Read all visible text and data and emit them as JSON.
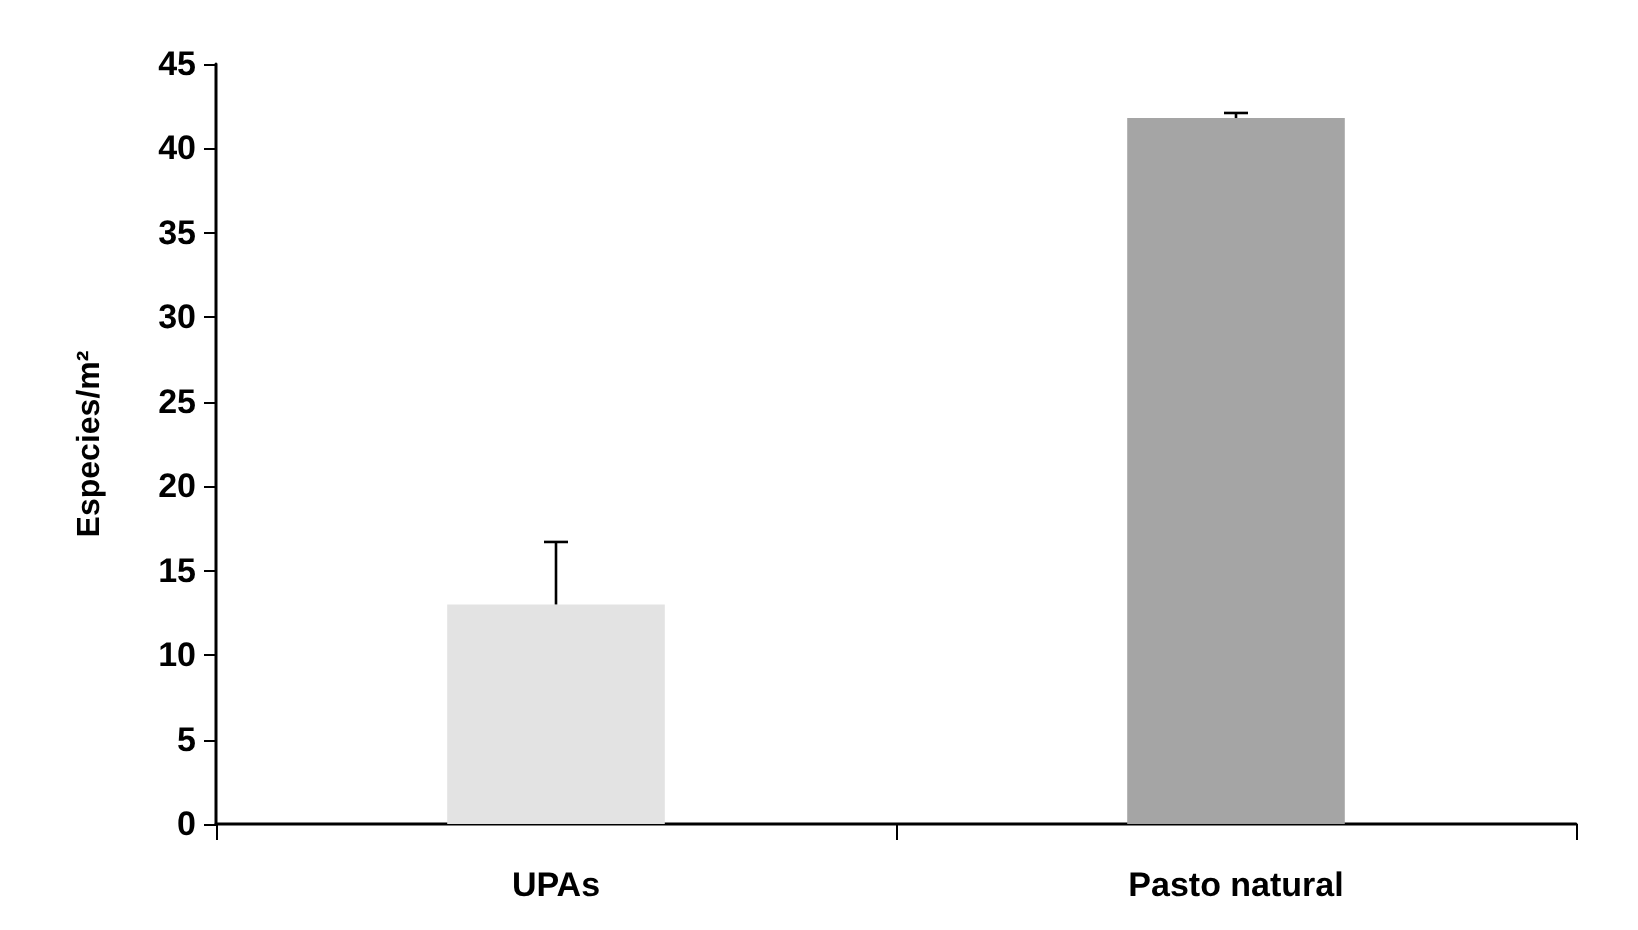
{
  "chart_data": {
    "type": "bar",
    "ylabel": "Especies/m²",
    "categories": [
      "UPAs",
      "Pasto natural"
    ],
    "values": [
      13,
      41.8
    ],
    "colors": [
      "#e3e3e3",
      "#a5a5a5"
    ],
    "errors": [
      [
        13,
        16.7
      ],
      [
        41.8,
        42.1
      ]
    ],
    "ylim": [
      0,
      45
    ],
    "yticks": [
      0,
      5,
      10,
      15,
      20,
      25,
      30,
      35,
      40,
      45
    ],
    "grid": false
  }
}
